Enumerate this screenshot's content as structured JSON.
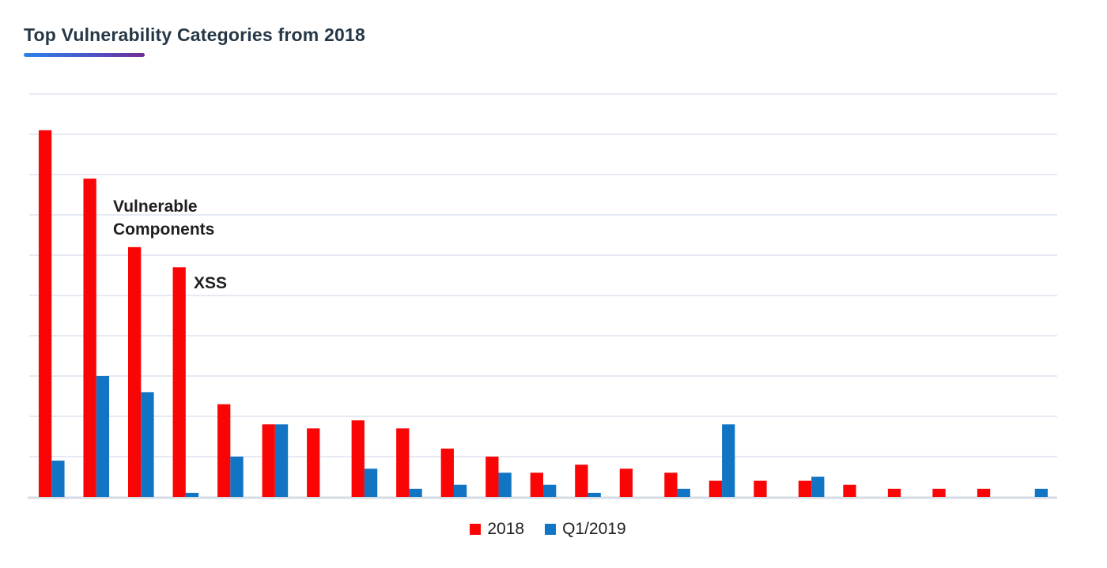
{
  "page": {
    "background": "#ffffff"
  },
  "header": {
    "title": "Top Vulnerability Categories from 2018"
  },
  "colors": {
    "title": "#253746",
    "underline_gradient_start": "#2e80e8",
    "underline_gradient_end": "#722d91",
    "gridline": "#dde4ee",
    "baseline": "#d5dce6",
    "series_2018": "#fa0505",
    "series_q1_2019": "#1175c4",
    "annotation_text": "#1f1f1f",
    "legend_text": "#212121"
  },
  "chart_data": {
    "type": "bar",
    "title": "Top Vulnerability Categories from 2018",
    "xlabel": "",
    "ylabel": "",
    "x_axis_tick_labels_visible": false,
    "y_axis_tick_labels_visible": false,
    "grid": true,
    "gridline_step": 10,
    "ylim": [
      0,
      100
    ],
    "value_scale_note": "relative units estimated from gridlines; no numeric axis labels are shown in the image",
    "group_count": 23,
    "legend_position": "bottom-center",
    "series": [
      {
        "name": "2018",
        "color": "#fa0505",
        "values": [
          91,
          79,
          62,
          57,
          23,
          18,
          17,
          19,
          17,
          12,
          10,
          6,
          8,
          7,
          6,
          4,
          4,
          4,
          3,
          2,
          2,
          2,
          0
        ]
      },
      {
        "name": "Q1/2019",
        "color": "#1175c4",
        "values": [
          9,
          30,
          26,
          1,
          10,
          18,
          0,
          7,
          2,
          3,
          6,
          3,
          1,
          0,
          2,
          18,
          0,
          5,
          0,
          0,
          0,
          0,
          2
        ]
      }
    ],
    "annotations": [
      {
        "text": "Vulnerable\nComponents",
        "group_index": 3
      },
      {
        "text": "XSS",
        "group_index": 4
      }
    ]
  },
  "legend": {
    "items": [
      {
        "label": "2018",
        "color": "#fa0505"
      },
      {
        "label": "Q1/2019",
        "color": "#1175c4"
      }
    ]
  }
}
